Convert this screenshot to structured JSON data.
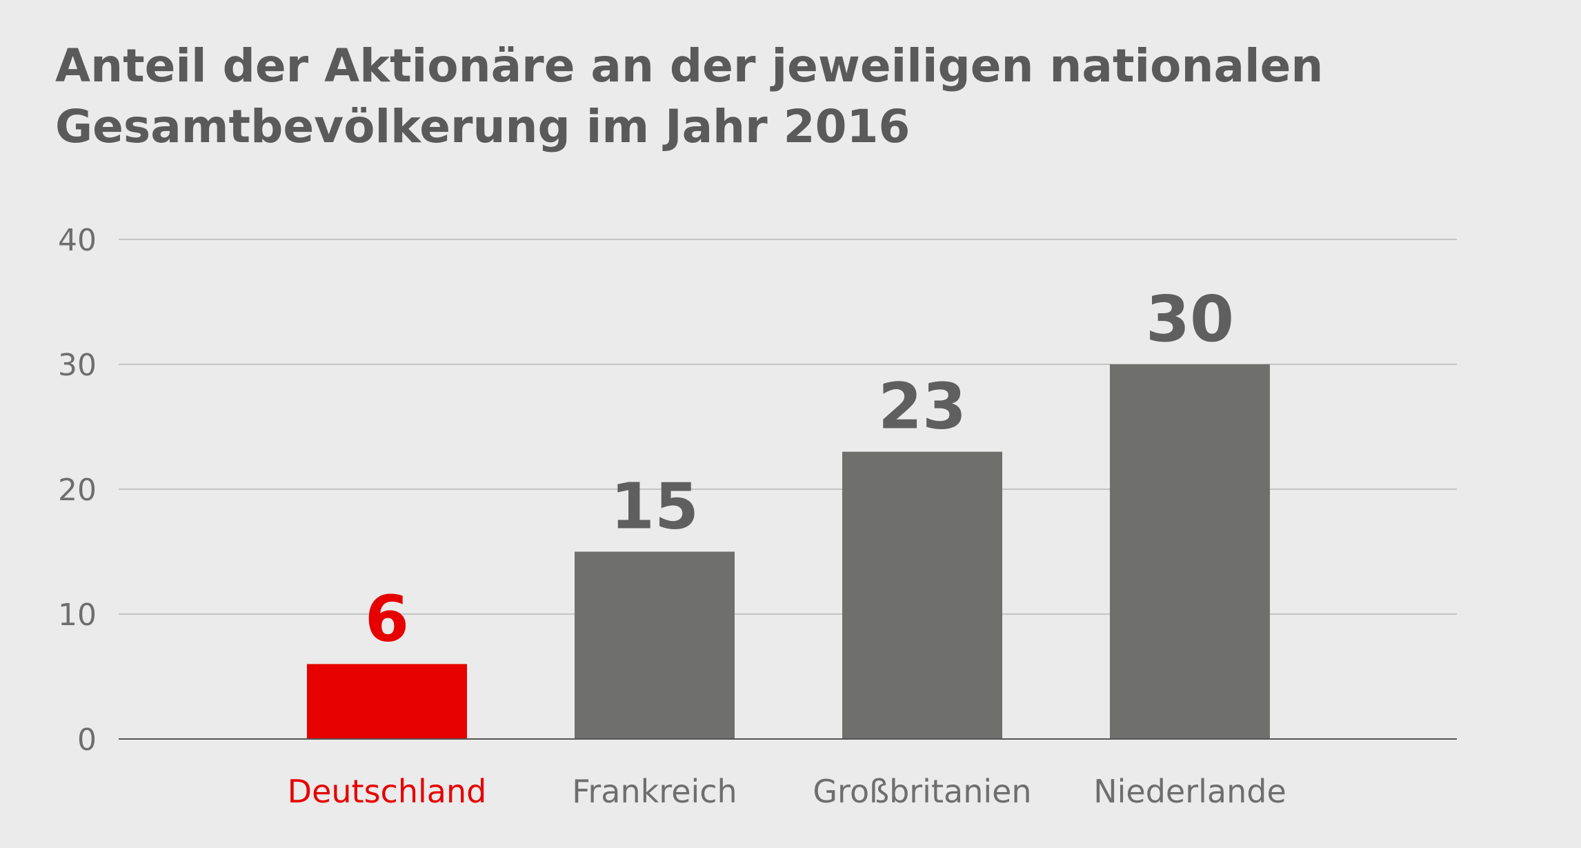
{
  "chart_data": {
    "type": "bar",
    "title": "Anteil der Aktionäre an der jeweiligen nationalen Gesamtbevölkerung im Jahr 2016",
    "xlabel": "",
    "ylabel": "",
    "categories": [
      "Deutschland",
      "Frankreich",
      "Großbritanien",
      "Niederlande"
    ],
    "values": [
      6,
      15,
      23,
      30
    ],
    "ylim": [
      0,
      40
    ],
    "yticks": [
      0,
      10,
      20,
      30,
      40
    ],
    "grid": true,
    "legend": "none",
    "highlight_index": 0,
    "colors": {
      "highlight": "#e60000",
      "bar": "#6f6f6d",
      "grid": "#c4c4c4",
      "axis": "#555555",
      "tick_text": "#6e6e6e",
      "label_text": "#6e6e6e",
      "value_text": "#5f5f5f",
      "background": "#ebebeb"
    }
  }
}
